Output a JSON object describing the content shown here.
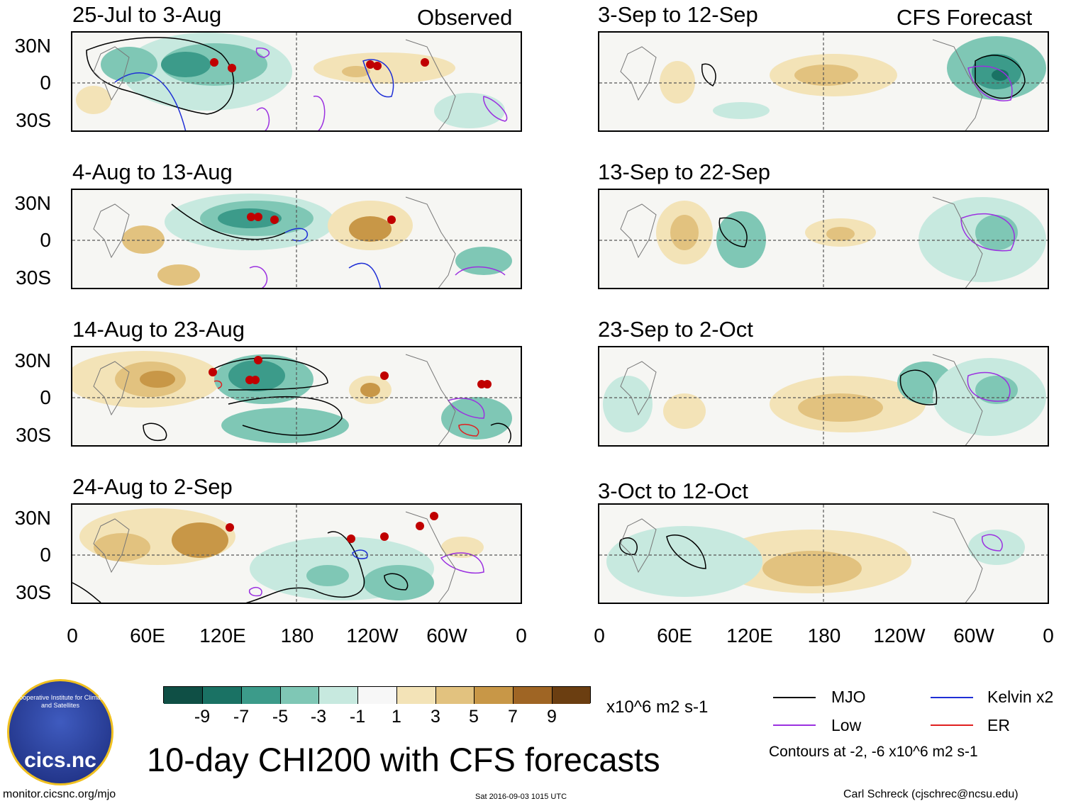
{
  "observed_label": "Observed",
  "forecast_label": "CFS Forecast",
  "observed_panels": [
    "25-Jul to 3-Aug",
    "4-Aug to 13-Aug",
    "14-Aug to 23-Aug",
    "24-Aug to 2-Sep"
  ],
  "forecast_panels": [
    "3-Sep to 12-Sep",
    "13-Sep to 22-Sep",
    "23-Sep to 2-Oct",
    "3-Oct to 12-Oct"
  ],
  "lat_labels": [
    "30N",
    "0",
    "30S"
  ],
  "lon_labels": [
    "0",
    "60E",
    "120E",
    "180",
    "120W",
    "60W",
    "0"
  ],
  "colorbar": {
    "colors": [
      "#0f4f45",
      "#1a7264",
      "#3c9b8a",
      "#7fc7b5",
      "#c7e9df",
      "#f7f7f7",
      "#f3e3b7",
      "#e2c27f",
      "#c89747",
      "#9f6524",
      "#6b3e11"
    ],
    "labels": [
      "-9",
      "-7",
      "-5",
      "-3",
      "-1",
      "1",
      "3",
      "5",
      "7",
      "9"
    ],
    "units": "x10^6 m2 s-1"
  },
  "legend": {
    "items": [
      {
        "label": "MJO",
        "color": "#000000"
      },
      {
        "label": "Kelvin x2",
        "color": "#1f2fd6"
      },
      {
        "label": "Low",
        "color": "#9b30e0"
      },
      {
        "label": "ER",
        "color": "#e02020"
      }
    ],
    "contours_note": "Contours at -2, -6 x10^6 m2 s-1"
  },
  "logo_text": "cics.nc",
  "logo_ring_text": "Cooperative Institute for Climate and Satellites",
  "main_title": "10-day CHI200 with CFS forecasts",
  "website": "monitor.cicsnc.org/mjo",
  "timestamp": "Sat 2016-09-03 1015 UTC",
  "author": "Carl Schreck (cjschrec@ncsu.edu)"
}
